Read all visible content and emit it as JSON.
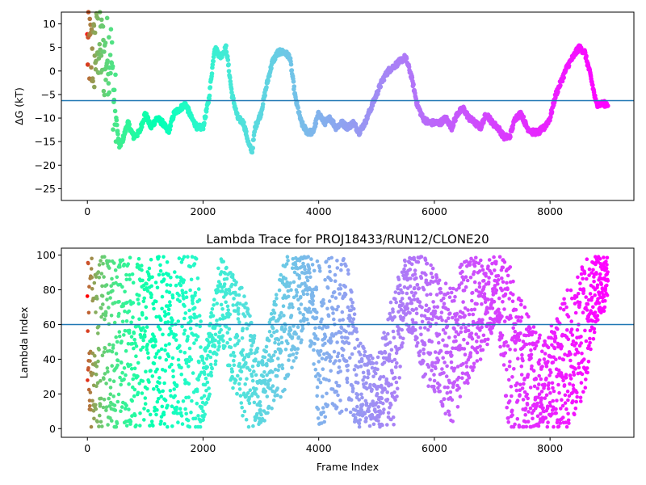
{
  "chart_data": [
    {
      "type": "scatter",
      "title": "",
      "xlabel": "",
      "ylabel": "ΔG (kT)",
      "xlim": [
        -450,
        9450
      ],
      "ylim": [
        -27.5,
        12.5
      ],
      "xticks": [
        0,
        2000,
        4000,
        6000,
        8000
      ],
      "yticks": [
        10,
        5,
        0,
        -5,
        -10,
        -15,
        -20,
        -25
      ],
      "hline": -6.3,
      "colormap": "rainbow (reversed with frame index: red at start, violet at end)",
      "colors": {
        "hline": "#1f77b4",
        "start": "#ff0000",
        "end": "#8000ff"
      },
      "series": [
        {
          "x": [
            0,
            100,
            200,
            300,
            400,
            450,
            550,
            600,
            700,
            800,
            900,
            1000,
            1100,
            1200,
            1300,
            1400,
            1500,
            1600,
            1700,
            1800,
            1900,
            2000,
            2100,
            2200,
            2300,
            2400,
            2500,
            2600,
            2700,
            2800,
            2850,
            2900,
            3000,
            3100,
            3200,
            3300,
            3400,
            3500,
            3600,
            3700,
            3800,
            3900,
            4000,
            4100,
            4200,
            4300,
            4400,
            4500,
            4600,
            4700,
            4800,
            4900,
            5000,
            5100,
            5200,
            5300,
            5400,
            5500,
            5600,
            5700,
            5800,
            5900,
            6000,
            6100,
            6200,
            6300,
            6400,
            6500,
            6600,
            6700,
            6800,
            6900,
            7000,
            7100,
            7200,
            7300,
            7400,
            7500,
            7600,
            7700,
            7800,
            7900,
            8000,
            8100,
            8200,
            8300,
            8400,
            8500,
            8600,
            8700,
            8800,
            8900,
            9000
          ],
          "y": [
            5,
            3,
            6,
            2,
            5,
            -5,
            -16,
            -15,
            -11,
            -14,
            -13,
            -9,
            -12,
            -10,
            -11,
            -13,
            -9,
            -8,
            -7,
            -10,
            -12,
            -12,
            -6,
            5,
            3,
            5,
            -5,
            -10,
            -11,
            -16,
            -17,
            -12,
            -9,
            -3,
            2,
            4,
            4,
            3,
            -6,
            -11,
            -13,
            -13,
            -9,
            -11,
            -10,
            -12,
            -11,
            -12,
            -11,
            -13,
            -11,
            -8,
            -5,
            -2,
            0,
            1,
            2,
            3,
            -1,
            -7,
            -10,
            -11,
            -11,
            -11,
            -10,
            -12,
            -9,
            -8,
            -10,
            -11,
            -12,
            -9,
            -11,
            -12,
            -14,
            -14,
            -10,
            -9,
            -12,
            -13,
            -13,
            -12,
            -10,
            -5,
            -2,
            1,
            3,
            5,
            4,
            -1,
            -7,
            -7,
            -7
          ]
        }
      ]
    },
    {
      "type": "scatter",
      "title": "Lambda Trace for PROJ18433/RUN12/CLONE20",
      "xlabel": "Frame Index",
      "ylabel": "Lambda Index",
      "xlim": [
        -450,
        9450
      ],
      "ylim": [
        -5,
        104
      ],
      "xticks": [
        0,
        2000,
        4000,
        6000,
        8000
      ],
      "yticks": [
        0,
        20,
        40,
        60,
        80,
        100
      ],
      "hline": 60,
      "colormap": "rainbow (reversed with frame index: red at start, violet at end)",
      "colors": {
        "hline": "#1f77b4",
        "start": "#ff0000",
        "end": "#8000ff"
      },
      "series": [
        {
          "segments_x": [
            0,
            1900,
            2000,
            2300,
            2700,
            3000,
            3400,
            3800,
            4000,
            4500,
            4700,
            5000,
            5300,
            5500,
            5800,
            6300,
            6500,
            7100,
            7300,
            7700,
            7900,
            8300,
            8600,
            8800,
            9000
          ],
          "segments_center": [
            50,
            50,
            20,
            75,
            40,
            20,
            60,
            80,
            50,
            55,
            25,
            20,
            40,
            80,
            65,
            40,
            60,
            80,
            45,
            30,
            25,
            40,
            60,
            80,
            85
          ],
          "segments_spread": [
            50,
            50,
            20,
            25,
            40,
            20,
            40,
            20,
            48,
            45,
            25,
            20,
            40,
            20,
            35,
            40,
            40,
            20,
            50,
            30,
            25,
            40,
            40,
            20,
            15
          ]
        }
      ]
    }
  ]
}
